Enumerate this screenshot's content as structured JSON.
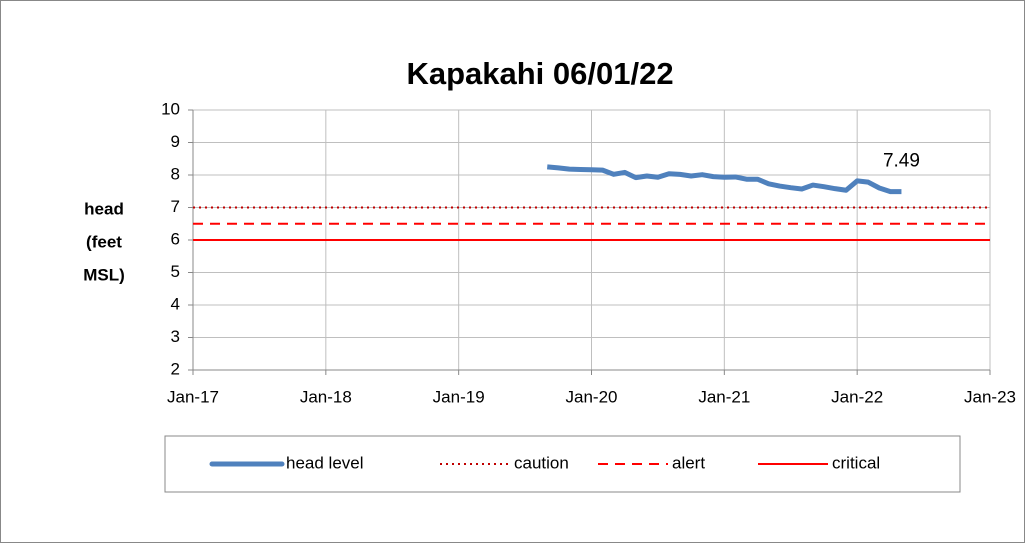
{
  "chart_data": {
    "type": "line",
    "title": "Kapakahi 06/01/22",
    "y_label": [
      "head",
      "(feet",
      "MSL)"
    ],
    "x": [
      "2019-09",
      "2019-10",
      "2019-11",
      "2019-12",
      "2020-01",
      "2020-02",
      "2020-03",
      "2020-04",
      "2020-05",
      "2020-06",
      "2020-07",
      "2020-08",
      "2020-09",
      "2020-10",
      "2020-11",
      "2020-12",
      "2021-01",
      "2021-02",
      "2021-03",
      "2021-04",
      "2021-05",
      "2021-06",
      "2021-07",
      "2021-08",
      "2021-09",
      "2021-10",
      "2021-11",
      "2021-12",
      "2022-01",
      "2022-02",
      "2022-03",
      "2022-04",
      "2022-05"
    ],
    "series": [
      {
        "name": "head level",
        "color": "#4f81bd",
        "values": [
          8.25,
          8.22,
          8.18,
          8.17,
          8.16,
          8.15,
          8.02,
          8.08,
          7.92,
          7.97,
          7.93,
          8.04,
          8.02,
          7.97,
          8.01,
          7.95,
          7.93,
          7.94,
          7.87,
          7.87,
          7.73,
          7.66,
          7.61,
          7.57,
          7.69,
          7.64,
          7.58,
          7.53,
          7.82,
          7.78,
          7.6,
          7.49,
          7.49
        ]
      }
    ],
    "reference_lines": [
      {
        "name": "caution",
        "color": "#c00000",
        "style": "dotted",
        "value": 7
      },
      {
        "name": "alert",
        "color": "#ff0000",
        "style": "dashed",
        "value": 6.5
      },
      {
        "name": "critical",
        "color": "#ff0000",
        "style": "solid",
        "value": 6
      }
    ],
    "label_last_point": true,
    "xlim": [
      "2017-01",
      "2023-01"
    ],
    "xticks": [
      {
        "value": "2017-01",
        "label": "Jan-17"
      },
      {
        "value": "2018-01",
        "label": "Jan-18"
      },
      {
        "value": "2019-01",
        "label": "Jan-19"
      },
      {
        "value": "2020-01",
        "label": "Jan-20"
      },
      {
        "value": "2021-01",
        "label": "Jan-21"
      },
      {
        "value": "2022-01",
        "label": "Jan-22"
      },
      {
        "value": "2023-01",
        "label": "Jan-23"
      }
    ],
    "ylim": [
      2,
      10
    ],
    "yticks": [
      2,
      3,
      4,
      5,
      6,
      7,
      8,
      9,
      10
    ],
    "grid": true,
    "legend": "bottom"
  }
}
